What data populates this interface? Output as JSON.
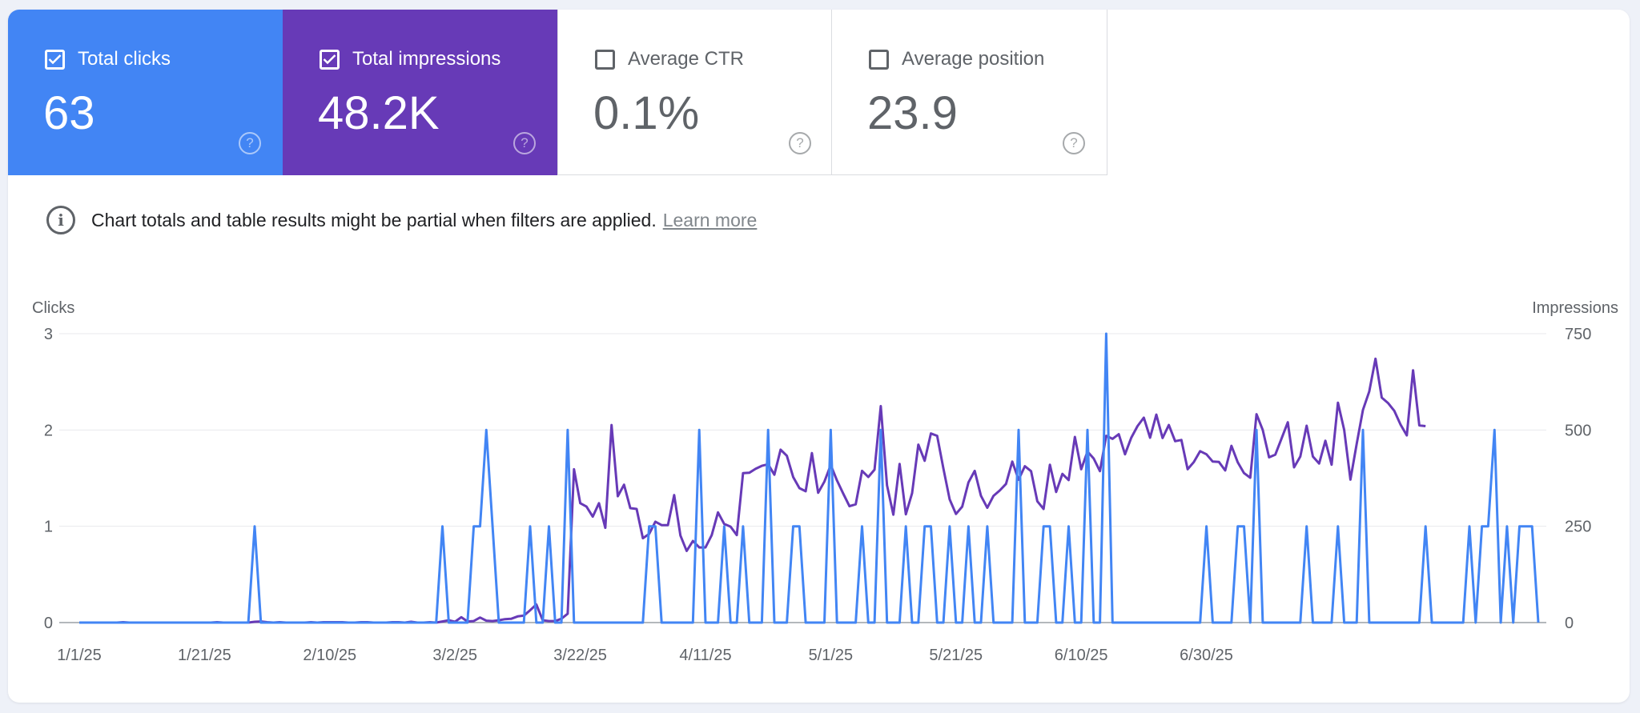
{
  "tiles": {
    "clicks": {
      "label": "Total clicks",
      "value": "63",
      "checked": true
    },
    "impressions": {
      "label": "Total impressions",
      "value": "48.2K",
      "checked": true
    },
    "ctr": {
      "label": "Average CTR",
      "value": "0.1%",
      "checked": false
    },
    "position": {
      "label": "Average position",
      "value": "23.9",
      "checked": false
    }
  },
  "notice": {
    "text": "Chart totals and table results might be partial when filters are applied.",
    "link": "Learn more"
  },
  "colors": {
    "clicks": "#4285f4",
    "impressions": "#673ab7"
  },
  "chart_data": {
    "type": "line",
    "x_start": "1/1/25",
    "x_end": "7/5/25",
    "x_ticks": [
      "1/1/25",
      "1/21/25",
      "2/10/25",
      "3/2/25",
      "3/22/25",
      "4/11/25",
      "5/1/25",
      "5/21/25",
      "6/10/25",
      "6/30/25"
    ],
    "left_axis": {
      "label": "Clicks",
      "ylim": [
        0,
        3
      ],
      "ticks": [
        "0",
        "1",
        "2",
        "3"
      ]
    },
    "right_axis": {
      "label": "Impressions",
      "ylim": [
        0,
        750
      ],
      "ticks": [
        "0",
        "250",
        "500",
        "750"
      ]
    },
    "grid": true,
    "series": [
      {
        "name": "Total clicks",
        "axis": "left",
        "color": "#4285f4",
        "values": [
          0,
          0,
          0,
          0,
          0,
          0,
          0,
          0,
          0,
          0,
          0,
          0,
          0,
          0,
          0,
          0,
          0,
          0,
          0,
          0,
          0,
          0,
          0,
          0,
          0,
          0,
          0,
          0,
          1,
          0,
          0,
          0,
          0,
          0,
          0,
          0,
          0,
          0,
          0,
          0,
          0,
          0,
          0,
          0,
          0,
          0,
          0,
          0,
          0,
          0,
          0,
          0,
          0,
          0,
          0,
          0,
          0,
          0,
          1,
          0,
          0,
          0,
          0,
          1,
          1,
          2,
          1,
          0,
          0,
          0,
          0,
          0,
          1,
          0,
          0,
          1,
          0,
          0,
          2,
          0,
          0,
          0,
          0,
          0,
          0,
          0,
          0,
          0,
          0,
          0,
          0,
          1,
          1,
          0,
          0,
          0,
          0,
          0,
          0,
          2,
          0,
          0,
          0,
          1,
          0,
          0,
          1,
          0,
          0,
          0,
          2,
          0,
          0,
          0,
          1,
          1,
          0,
          0,
          0,
          0,
          2,
          0,
          0,
          0,
          0,
          1,
          0,
          0,
          2,
          0,
          0,
          0,
          1,
          0,
          0,
          1,
          1,
          0,
          0,
          1,
          0,
          0,
          1,
          0,
          0,
          1,
          0,
          0,
          0,
          0,
          2,
          0,
          0,
          0,
          1,
          1,
          0,
          0,
          1,
          0,
          0,
          2,
          0,
          0,
          3,
          0,
          0,
          0,
          0,
          0,
          0,
          0,
          0,
          0,
          0,
          0,
          0,
          0,
          0,
          0,
          1,
          0,
          0,
          0,
          0,
          1,
          1,
          0,
          2,
          0,
          0,
          0,
          0,
          0,
          0,
          0,
          1,
          0,
          0,
          0,
          0,
          1,
          0,
          0,
          0,
          2,
          0,
          0,
          0,
          0,
          0,
          0,
          0,
          0,
          0,
          1,
          0,
          0,
          0,
          0,
          0,
          0,
          1,
          0,
          1,
          1,
          2,
          0,
          1,
          0,
          1,
          1,
          1,
          0
        ]
      },
      {
        "name": "Total impressions",
        "axis": "right",
        "color": "#673ab7",
        "values": [
          0,
          0,
          0,
          0,
          0,
          0,
          0,
          1,
          0,
          0,
          0,
          0,
          0,
          0,
          0,
          0,
          0,
          0,
          0,
          0,
          0,
          0,
          1,
          0,
          0,
          0,
          0,
          0,
          2,
          3,
          1,
          0,
          1,
          0,
          0,
          0,
          0,
          1,
          0,
          1,
          1,
          1,
          1,
          0,
          0,
          1,
          1,
          0,
          0,
          0,
          1,
          1,
          0,
          2,
          0,
          0,
          1,
          0,
          3,
          6,
          2,
          14,
          3,
          4,
          13,
          5,
          4,
          6,
          9,
          10,
          16,
          18,
          32,
          47,
          6,
          4,
          4,
          10,
          23,
          398,
          310,
          301,
          275,
          310,
          246,
          513,
          328,
          358,
          297,
          295,
          219,
          230,
          262,
          253,
          253,
          331,
          226,
          186,
          212,
          195,
          195,
          227,
          286,
          256,
          249,
          227,
          388,
          389,
          399,
          407,
          411,
          384,
          449,
          433,
          378,
          349,
          341,
          440,
          337,
          366,
          409,
          369,
          335,
          302,
          307,
          394,
          378,
          397,
          562,
          356,
          280,
          412,
          281,
          336,
          462,
          420,
          491,
          485,
          400,
          320,
          282,
          301,
          364,
          394,
          329,
          298,
          329,
          343,
          360,
          418,
          371,
          406,
          393,
          315,
          295,
          410,
          339,
          386,
          370,
          482,
          398,
          444,
          426,
          393,
          485,
          477,
          489,
          437,
          480,
          510,
          532,
          480,
          540,
          479,
          513,
          471,
          474,
          398,
          417,
          445,
          437,
          418,
          417,
          395,
          459,
          416,
          388,
          376,
          541,
          500,
          429,
          436,
          478,
          520,
          403,
          431,
          511,
          431,
          413,
          472,
          410,
          571,
          500,
          371,
          464,
          552,
          600,
          685,
          584,
          570,
          550,
          514,
          486,
          655,
          512,
          510
        ]
      }
    ]
  }
}
